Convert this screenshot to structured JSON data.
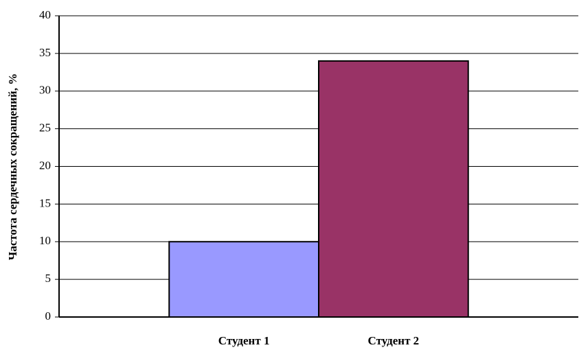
{
  "chart_data": {
    "type": "bar",
    "y_label": "Частота сердечных сокращений, %",
    "categories": [
      "Студент 1",
      "Студент 2"
    ],
    "values": [
      10,
      34
    ],
    "colors": [
      "#9999ff",
      "#993366"
    ],
    "ylim": [
      0,
      40
    ],
    "yticks": [
      0,
      5,
      10,
      15,
      20,
      25,
      30,
      35,
      40
    ],
    "grid": true
  }
}
